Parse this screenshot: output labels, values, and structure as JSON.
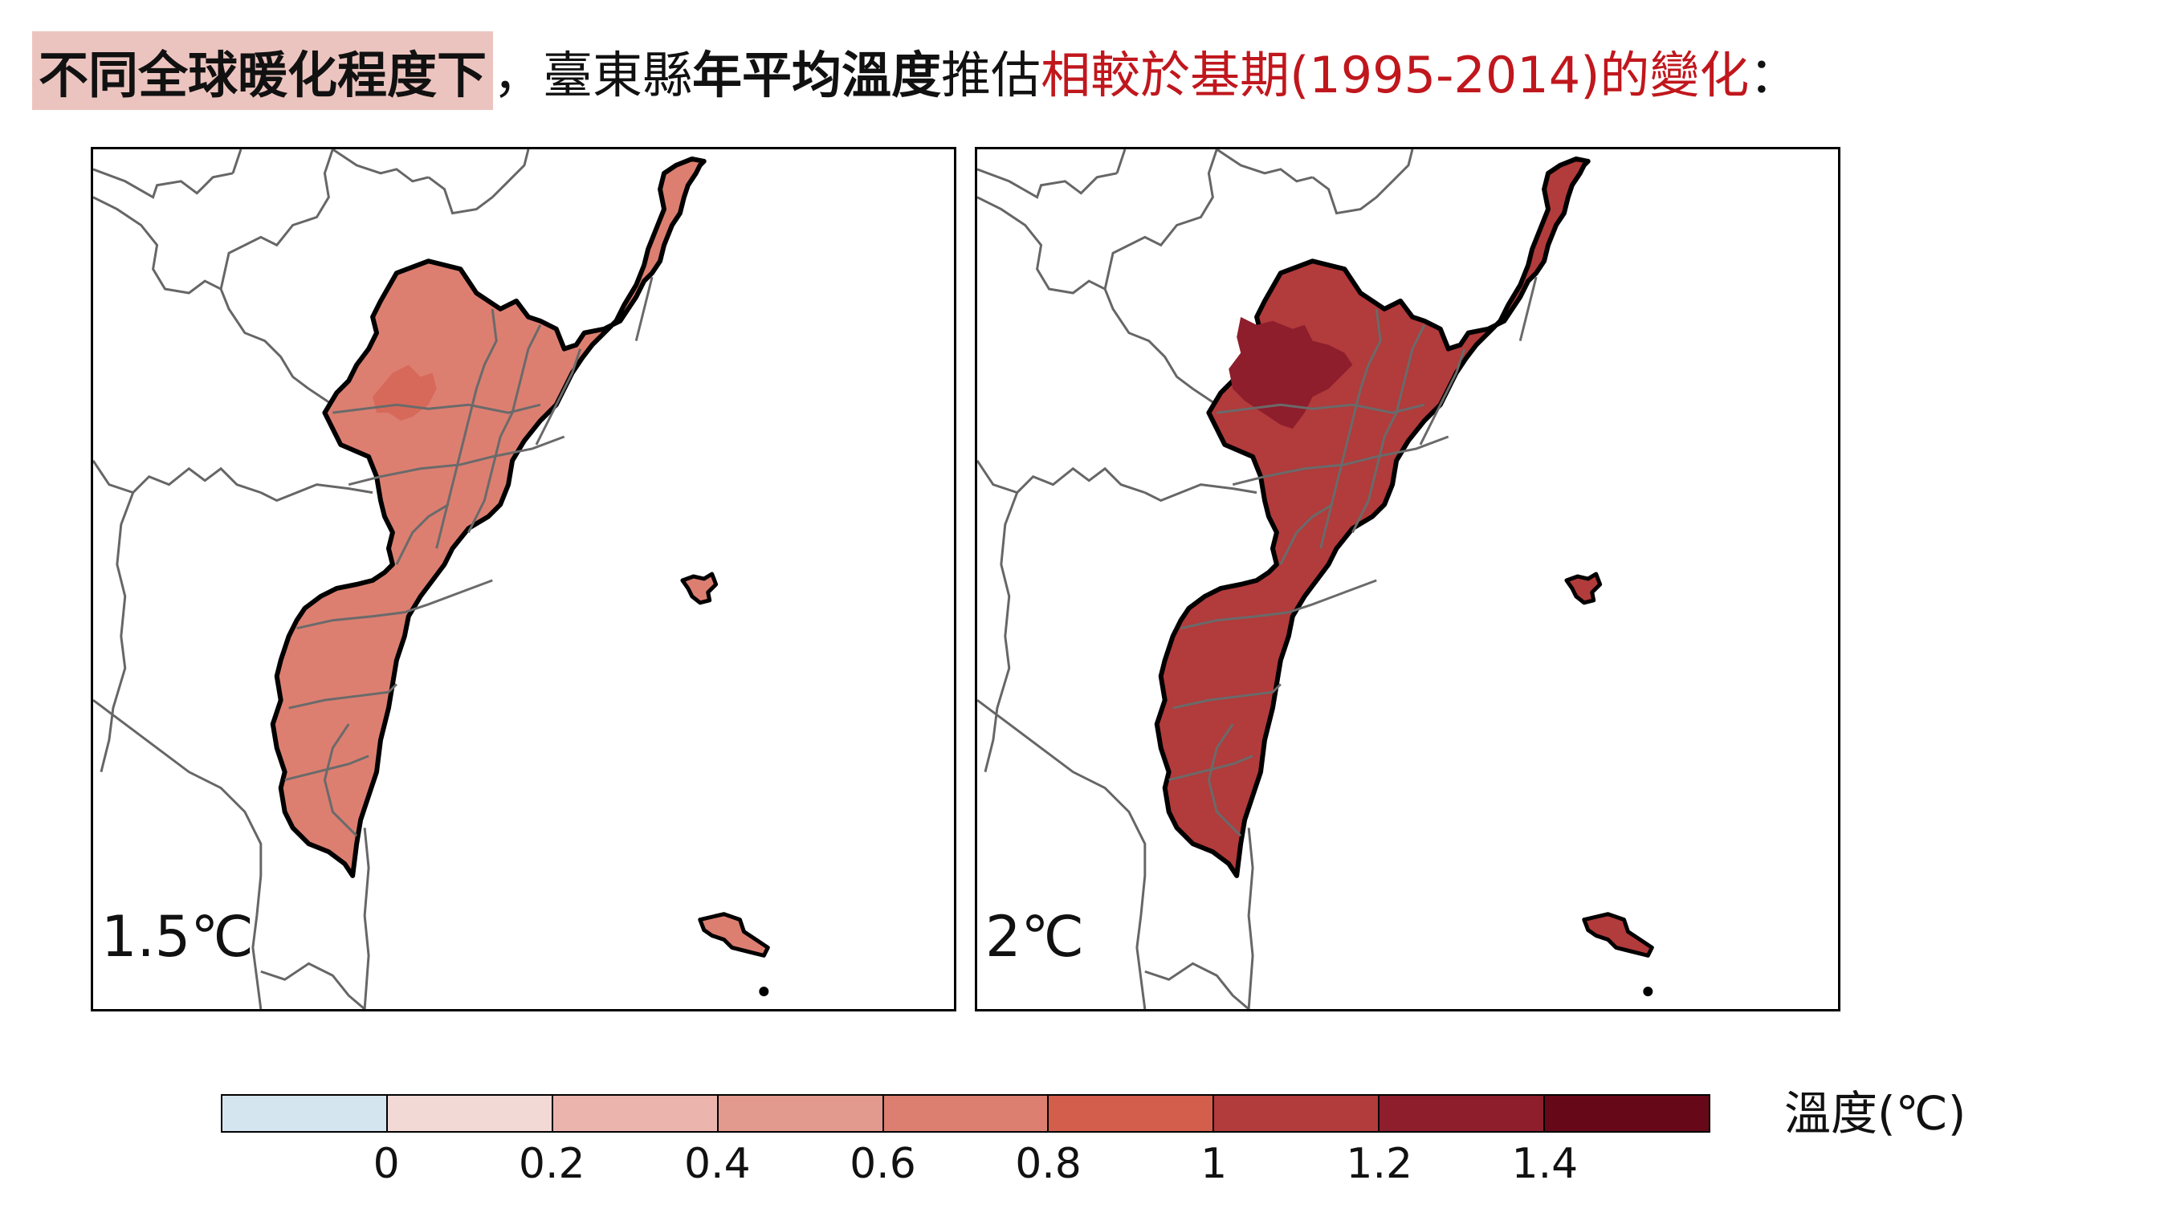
{
  "title": {
    "highlight": "不同全球暖化程度下",
    "part1": "，臺東縣",
    "bold": "年平均溫度",
    "part2": "推估",
    "red": "相較於基期(1995-2014)的變化",
    "end": "："
  },
  "panels": [
    {
      "label": "1.5℃",
      "fill": "#dc7f71",
      "hotspot": "#d7695a",
      "hotspot_level": "0.8"
    },
    {
      "label": "2℃",
      "fill": "#b23b3b",
      "hotspot": "#8e1e2c",
      "hotspot_level": "1.2"
    }
  ],
  "colorbar": {
    "unit_label": "溫度(℃)",
    "colors": [
      "#d5e5ef",
      "#f2d9d5",
      "#ebb5ad",
      "#e29a8e",
      "#dc7f71",
      "#d35e4b",
      "#b23b3b",
      "#8e1e2c",
      "#670818"
    ],
    "tick_labels": [
      "0",
      "0.2",
      "0.4",
      "0.6",
      "0.8",
      "1",
      "1.2",
      "1.4"
    ]
  }
}
